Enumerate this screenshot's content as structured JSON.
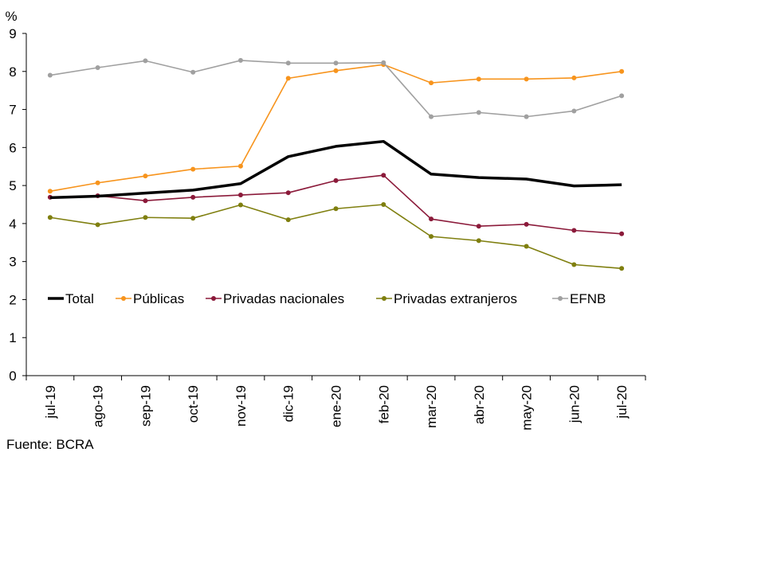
{
  "chart_data": {
    "type": "line",
    "title": "",
    "ylabel": "%",
    "xlabel": "",
    "ylim": [
      0,
      9
    ],
    "yticks": [
      0,
      1,
      2,
      3,
      4,
      5,
      6,
      7,
      8,
      9
    ],
    "grid": false,
    "legend_position": "inside-bottom-left",
    "categories": [
      "jul-19",
      "ago-19",
      "sep-19",
      "oct-19",
      "nov-19",
      "dic-19",
      "ene-20",
      "feb-20",
      "mar-20",
      "abr-20",
      "may-20",
      "jun-20",
      "jul-20"
    ],
    "series": [
      {
        "name": "Total",
        "color": "#000000",
        "values": [
          4.68,
          4.72,
          4.8,
          4.88,
          5.05,
          5.76,
          6.03,
          6.16,
          5.3,
          5.21,
          5.17,
          4.99,
          5.02
        ]
      },
      {
        "name": "Públicas",
        "color": "#f7941d",
        "values": [
          4.85,
          5.07,
          5.25,
          5.43,
          5.51,
          7.82,
          8.02,
          8.18,
          7.7,
          7.8,
          7.8,
          7.83,
          8.0
        ]
      },
      {
        "name": "Privadas nacionales",
        "color": "#8b1a3a",
        "values": [
          4.69,
          4.73,
          4.6,
          4.69,
          4.75,
          4.81,
          5.13,
          5.27,
          4.12,
          3.93,
          3.98,
          3.82,
          3.73
        ]
      },
      {
        "name": "Privadas extranjeros",
        "color": "#7f7f0f",
        "values": [
          4.16,
          3.97,
          4.16,
          4.14,
          4.49,
          4.1,
          4.39,
          4.5,
          3.66,
          3.55,
          3.4,
          2.92,
          2.82
        ]
      },
      {
        "name": "EFNB",
        "color": "#a0a0a0",
        "values": [
          7.9,
          8.1,
          8.28,
          7.98,
          8.29,
          8.22,
          8.22,
          8.23,
          6.81,
          6.92,
          6.81,
          6.96,
          7.36
        ]
      }
    ]
  },
  "source": "Fuente: BCRA"
}
